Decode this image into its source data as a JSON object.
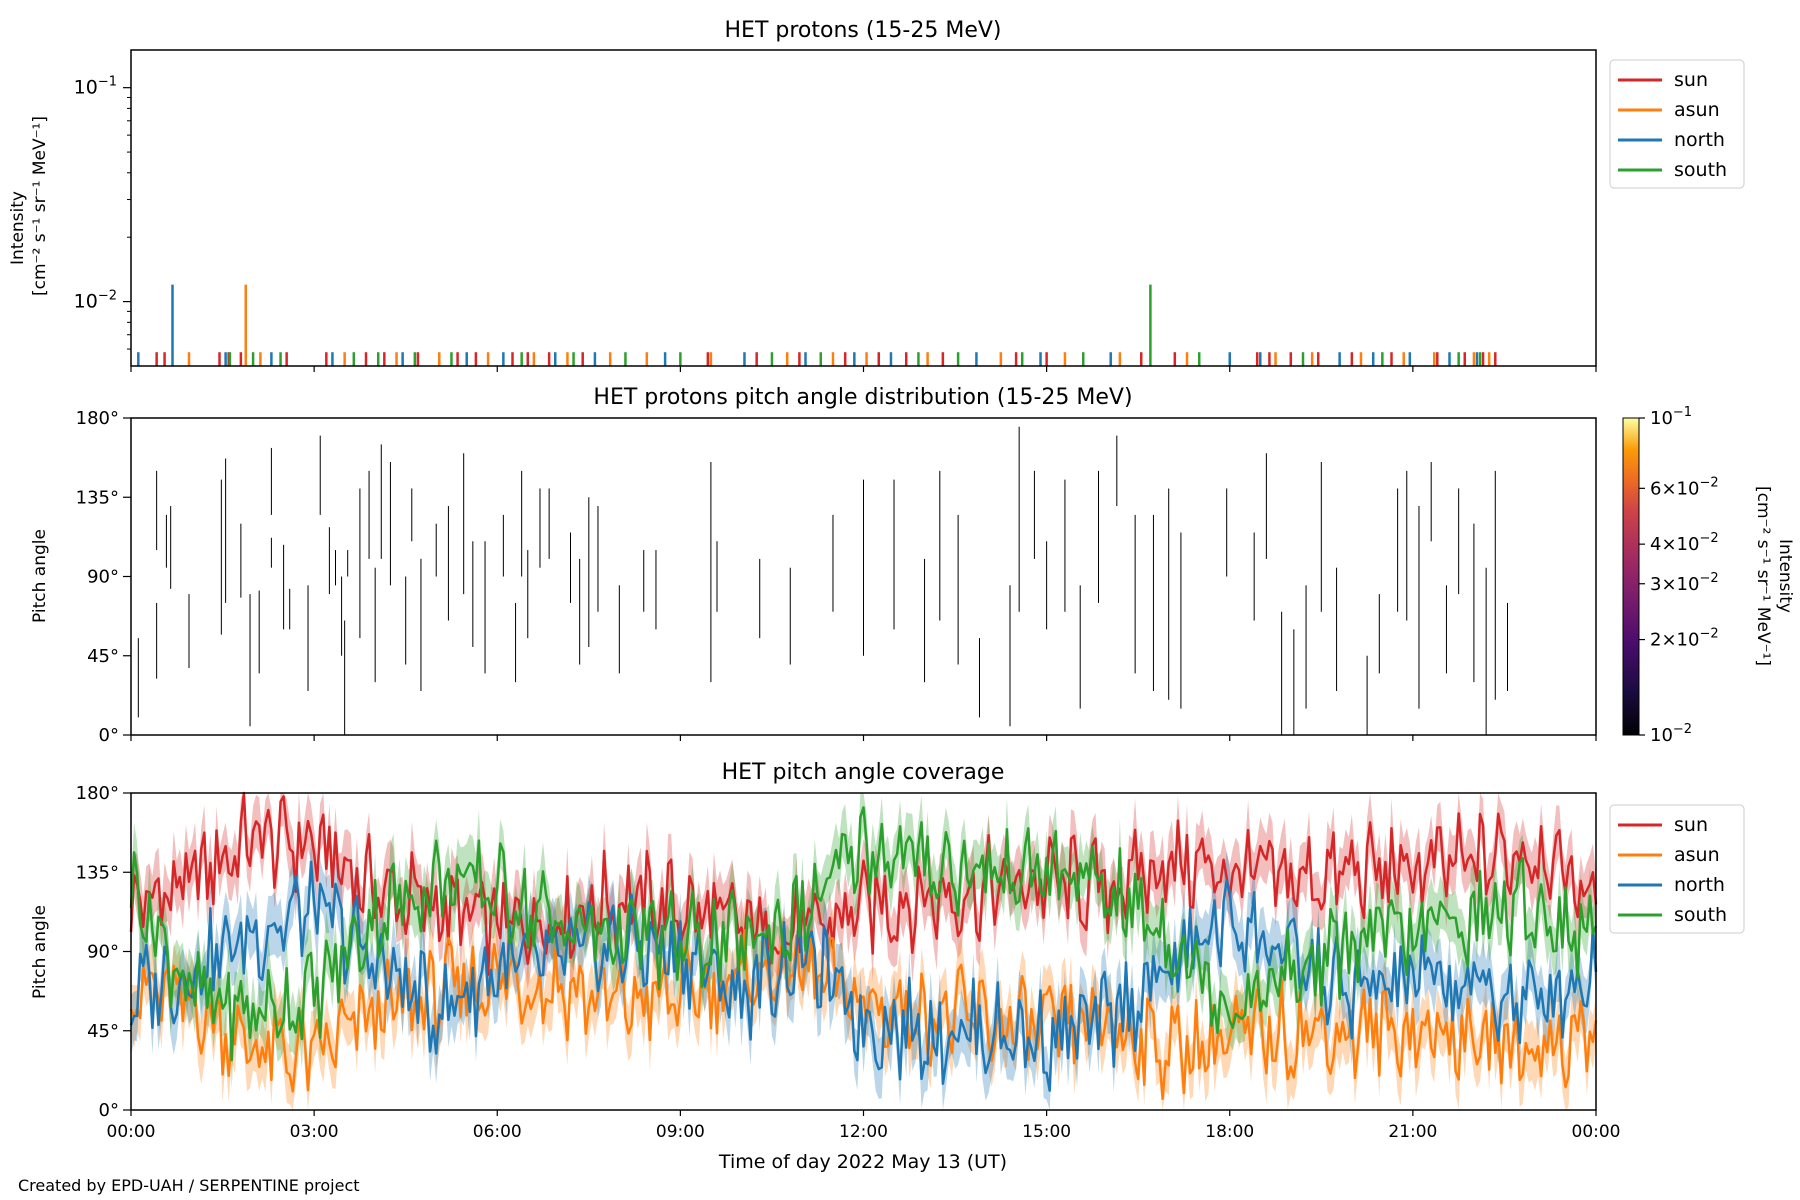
{
  "credit": "Created by EPD-UAH / SERPENTINE project",
  "colors": {
    "sun": "#d62728",
    "asun": "#ff7f0e",
    "north": "#1f77b4",
    "south": "#2ca02c"
  },
  "chart_data": [
    {
      "type": "line",
      "title": "HET protons (15-25 MeV)",
      "ylabel_line1": "Intensity",
      "ylabel_line2": "[cm⁻² s⁻¹ sr⁻¹ MeV⁻¹]",
      "yscale": "log",
      "ylim": [
        0.005,
        0.15
      ],
      "yticks": [
        {
          "value": 0.1,
          "base": "10",
          "exp": "−1"
        },
        {
          "value": 0.01,
          "base": "10",
          "exp": "−2"
        }
      ],
      "xlim_hours": [
        0,
        24
      ],
      "legend_position": "right",
      "legend": [
        "sun",
        "asun",
        "north",
        "south"
      ],
      "series": [
        {
          "name": "sun",
          "color": "#d62728",
          "baseline": 0.0058,
          "x_hours": [
            0.42,
            0.55,
            1.45,
            1.6,
            1.8,
            2.55,
            3.2,
            3.85,
            4.15,
            4.7,
            5.35,
            5.65,
            6.25,
            6.5,
            6.85,
            7.4,
            9.45,
            10.25,
            10.95,
            11.7,
            12.25,
            12.7,
            13.3,
            14.5,
            15.0,
            16.55,
            17.1,
            18.45,
            18.65,
            19.0,
            19.45,
            20.0,
            20.65,
            21.4,
            21.85,
            22.15,
            22.35
          ],
          "y": [
            0.0058,
            0.0058,
            0.0058,
            0.0058,
            0.0058,
            0.0058,
            0.0058,
            0.0058,
            0.0058,
            0.0058,
            0.0058,
            0.0058,
            0.0058,
            0.0058,
            0.0058,
            0.0058,
            0.0058,
            0.0058,
            0.0058,
            0.0058,
            0.0058,
            0.0058,
            0.0058,
            0.0058,
            0.0058,
            0.0058,
            0.0058,
            0.0058,
            0.0058,
            0.0058,
            0.0058,
            0.0058,
            0.0058,
            0.0058,
            0.0058,
            0.0058,
            0.0058
          ]
        },
        {
          "name": "asun",
          "color": "#ff7f0e",
          "baseline": 0.0058,
          "x_hours": [
            0.95,
            1.88,
            2.12,
            3.5,
            4.35,
            5.05,
            5.85,
            6.6,
            7.15,
            7.85,
            8.45,
            9.5,
            10.75,
            11.5,
            12.05,
            13.05,
            14.25,
            15.3,
            16.2,
            17.3,
            18.75,
            19.35,
            20.15,
            20.85,
            21.35,
            22.0,
            22.25
          ],
          "y": [
            0.0058,
            0.012,
            0.0058,
            0.0058,
            0.0058,
            0.0058,
            0.0058,
            0.0058,
            0.0058,
            0.0058,
            0.0058,
            0.0058,
            0.0058,
            0.0058,
            0.0058,
            0.0058,
            0.0058,
            0.0058,
            0.0058,
            0.0058,
            0.0058,
            0.0058,
            0.0058,
            0.0058,
            0.0058,
            0.0058,
            0.0058
          ]
        },
        {
          "name": "north",
          "color": "#1f77b4",
          "baseline": 0.0058,
          "x_hours": [
            0.12,
            0.68,
            1.55,
            2.3,
            3.3,
            4.45,
            5.5,
            6.1,
            6.95,
            7.6,
            8.75,
            10.05,
            11.05,
            11.85,
            12.45,
            13.85,
            14.9,
            16.05,
            18.0,
            18.5,
            19.8,
            20.35,
            20.95,
            21.6,
            22.05
          ],
          "y": [
            0.0058,
            0.012,
            0.0058,
            0.0058,
            0.0058,
            0.0058,
            0.0058,
            0.0058,
            0.0058,
            0.0058,
            0.0058,
            0.0058,
            0.0058,
            0.0058,
            0.0058,
            0.0058,
            0.0058,
            0.0058,
            0.0058,
            0.0058,
            0.0058,
            0.0058,
            0.0058,
            0.0058,
            0.0058
          ]
        },
        {
          "name": "south",
          "color": "#2ca02c",
          "baseline": 0.0058,
          "x_hours": [
            1.62,
            2.0,
            2.45,
            3.65,
            4.05,
            4.65,
            5.25,
            6.4,
            7.25,
            8.1,
            9.0,
            10.5,
            11.3,
            12.9,
            13.55,
            14.6,
            15.6,
            16.7,
            17.5,
            19.2,
            20.5,
            21.75,
            22.1
          ],
          "y": [
            0.0058,
            0.0058,
            0.0058,
            0.0058,
            0.0058,
            0.0058,
            0.0058,
            0.0058,
            0.0058,
            0.0058,
            0.0058,
            0.0058,
            0.0058,
            0.0058,
            0.0058,
            0.0058,
            0.0058,
            0.012,
            0.0058,
            0.0058,
            0.0058,
            0.0058,
            0.0058
          ]
        }
      ]
    },
    {
      "type": "heatmap",
      "title": "HET protons pitch angle distribution (15-25 MeV)",
      "ylabel": "Pitch angle",
      "ylim": [
        0,
        180
      ],
      "yticks": [
        "0°",
        "45°",
        "90°",
        "135°",
        "180°"
      ],
      "xlim_hours": [
        0,
        24
      ],
      "colorbar": {
        "label_line1": "Intensity",
        "label_line2": "[cm⁻² s⁻¹ sr⁻¹ MeV⁻¹]",
        "scale": "log",
        "range": [
          0.01,
          0.1
        ],
        "colormap": "inferno",
        "ticks": [
          {
            "value": 0.1,
            "mant": "",
            "exp": "−1"
          },
          {
            "value": 0.06,
            "mant": "6×",
            "exp": "−2"
          },
          {
            "value": 0.04,
            "mant": "4×",
            "exp": "−2"
          },
          {
            "value": 0.03,
            "mant": "3×",
            "exp": "−2"
          },
          {
            "value": 0.02,
            "mant": "2×",
            "exp": "−2"
          },
          {
            "value": 0.01,
            "mant": "",
            "exp": "−2"
          }
        ]
      },
      "segments": [
        [
          0.12,
          10,
          55
        ],
        [
          0.42,
          32,
          75
        ],
        [
          0.42,
          105,
          150
        ],
        [
          0.58,
          95,
          125
        ],
        [
          0.65,
          83,
          130
        ],
        [
          0.95,
          38,
          80
        ],
        [
          1.48,
          57,
          145
        ],
        [
          1.55,
          75,
          157
        ],
        [
          1.8,
          78,
          120
        ],
        [
          1.95,
          5,
          80
        ],
        [
          2.1,
          35,
          82
        ],
        [
          2.3,
          95,
          112
        ],
        [
          2.3,
          125,
          163
        ],
        [
          2.5,
          60,
          108
        ],
        [
          2.6,
          60,
          83
        ],
        [
          2.9,
          25,
          85
        ],
        [
          3.1,
          125,
          170
        ],
        [
          3.25,
          80,
          118
        ],
        [
          3.35,
          85,
          105
        ],
        [
          3.45,
          45,
          90
        ],
        [
          3.5,
          0,
          65
        ],
        [
          3.55,
          90,
          105
        ],
        [
          3.75,
          55,
          140
        ],
        [
          3.9,
          100,
          150
        ],
        [
          4.0,
          30,
          95
        ],
        [
          4.1,
          100,
          165
        ],
        [
          4.25,
          85,
          155
        ],
        [
          4.5,
          40,
          90
        ],
        [
          4.6,
          110,
          140
        ],
        [
          4.75,
          25,
          100
        ],
        [
          5.0,
          90,
          120
        ],
        [
          5.2,
          65,
          130
        ],
        [
          5.45,
          80,
          160
        ],
        [
          5.6,
          50,
          110
        ],
        [
          5.8,
          35,
          110
        ],
        [
          6.1,
          90,
          125
        ],
        [
          6.3,
          30,
          75
        ],
        [
          6.4,
          90,
          150
        ],
        [
          6.5,
          55,
          105
        ],
        [
          6.7,
          95,
          140
        ],
        [
          6.85,
          100,
          140
        ],
        [
          7.2,
          75,
          115
        ],
        [
          7.35,
          40,
          100
        ],
        [
          7.5,
          50,
          135
        ],
        [
          7.65,
          70,
          130
        ],
        [
          8.0,
          35,
          85
        ],
        [
          8.4,
          70,
          105
        ],
        [
          8.6,
          60,
          105
        ],
        [
          9.5,
          30,
          155
        ],
        [
          9.6,
          70,
          110
        ],
        [
          10.3,
          55,
          100
        ],
        [
          10.8,
          40,
          95
        ],
        [
          11.5,
          70,
          125
        ],
        [
          12.0,
          45,
          145
        ],
        [
          12.5,
          60,
          145
        ],
        [
          13.0,
          30,
          100
        ],
        [
          13.25,
          65,
          150
        ],
        [
          13.55,
          40,
          125
        ],
        [
          13.9,
          10,
          55
        ],
        [
          14.4,
          5,
          85
        ],
        [
          14.55,
          70,
          175
        ],
        [
          14.8,
          100,
          150
        ],
        [
          15.0,
          60,
          110
        ],
        [
          15.3,
          70,
          145
        ],
        [
          15.55,
          15,
          85
        ],
        [
          15.85,
          75,
          150
        ],
        [
          16.15,
          130,
          170
        ],
        [
          16.45,
          35,
          125
        ],
        [
          16.75,
          25,
          125
        ],
        [
          17.0,
          20,
          140
        ],
        [
          17.2,
          15,
          115
        ],
        [
          17.95,
          90,
          140
        ],
        [
          18.4,
          65,
          115
        ],
        [
          18.6,
          100,
          160
        ],
        [
          18.85,
          0,
          70
        ],
        [
          19.05,
          0,
          60
        ],
        [
          19.25,
          15,
          85
        ],
        [
          19.5,
          70,
          155
        ],
        [
          19.75,
          25,
          95
        ],
        [
          20.25,
          0,
          45
        ],
        [
          20.45,
          35,
          80
        ],
        [
          20.75,
          70,
          140
        ],
        [
          20.9,
          65,
          150
        ],
        [
          21.1,
          15,
          130
        ],
        [
          21.3,
          110,
          155
        ],
        [
          21.55,
          35,
          85
        ],
        [
          21.75,
          80,
          140
        ],
        [
          22.0,
          30,
          120
        ],
        [
          22.2,
          0,
          95
        ],
        [
          22.35,
          20,
          150
        ],
        [
          22.55,
          25,
          75
        ]
      ]
    },
    {
      "type": "line",
      "title": "HET pitch angle coverage",
      "ylabel": "Pitch angle",
      "xlabel": "Time of day 2022 May 13 (UT)",
      "ylim": [
        0,
        180
      ],
      "yticks": [
        "0°",
        "45°",
        "90°",
        "135°",
        "180°"
      ],
      "xticks": [
        "00:00",
        "03:00",
        "06:00",
        "09:00",
        "12:00",
        "15:00",
        "18:00",
        "21:00",
        "00:00"
      ],
      "xlim_hours": [
        0,
        24
      ],
      "legend_position": "right",
      "legend": [
        "sun",
        "asun",
        "north",
        "south"
      ],
      "band_halfwidth_deg": 15,
      "series": [
        {
          "name": "sun",
          "color": "#d62728",
          "x_hours": [
            0,
            1,
            2,
            3,
            4,
            5,
            6,
            7,
            8,
            9,
            10,
            11,
            12,
            13,
            14,
            15,
            16,
            17,
            18,
            19,
            20,
            21,
            22,
            23,
            24
          ],
          "y": [
            115,
            130,
            155,
            150,
            125,
            115,
            105,
            110,
            120,
            115,
            105,
            100,
            115,
            120,
            125,
            130,
            125,
            140,
            135,
            130,
            135,
            135,
            140,
            150,
            120
          ]
        },
        {
          "name": "asun",
          "color": "#ff7f0e",
          "x_hours": [
            0,
            1,
            2,
            3,
            4,
            5,
            6,
            7,
            8,
            9,
            10,
            11,
            12,
            13,
            14,
            15,
            16,
            17,
            18,
            19,
            20,
            21,
            22,
            23,
            24
          ],
          "y": [
            70,
            60,
            35,
            30,
            55,
            65,
            75,
            70,
            60,
            65,
            75,
            80,
            60,
            55,
            50,
            45,
            50,
            35,
            40,
            45,
            45,
            45,
            40,
            35,
            45
          ]
        },
        {
          "name": "north",
          "color": "#1f77b4",
          "x_hours": [
            0,
            1,
            2,
            3,
            4,
            5,
            6,
            7,
            8,
            9,
            10,
            11,
            12,
            13,
            14,
            15,
            16,
            17,
            18,
            19,
            20,
            21,
            22,
            23,
            24
          ],
          "y": [
            65,
            80,
            100,
            115,
            85,
            55,
            80,
            85,
            95,
            90,
            65,
            90,
            50,
            45,
            45,
            40,
            50,
            80,
            110,
            85,
            65,
            75,
            70,
            60,
            80
          ]
        },
        {
          "name": "south",
          "color": "#2ca02c",
          "x_hours": [
            0,
            1,
            2,
            3,
            4,
            5,
            6,
            7,
            8,
            9,
            10,
            11,
            12,
            13,
            14,
            15,
            16,
            17,
            18,
            19,
            20,
            21,
            22,
            23,
            24
          ],
          "y": [
            130,
            65,
            55,
            65,
            110,
            130,
            125,
            105,
            100,
            95,
            95,
            110,
            150,
            140,
            135,
            135,
            125,
            100,
            60,
            75,
            95,
            100,
            110,
            115,
            95
          ]
        }
      ]
    }
  ]
}
